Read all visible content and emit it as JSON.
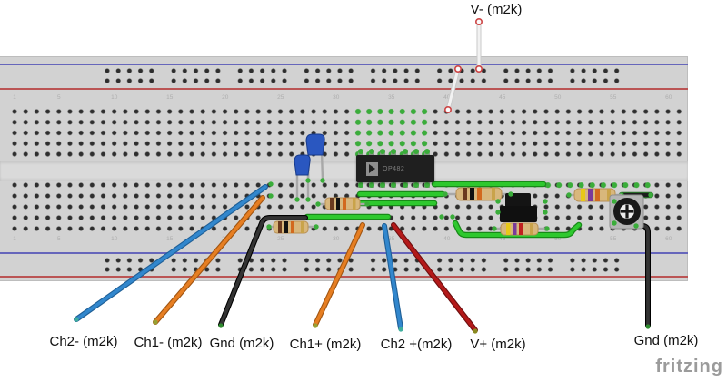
{
  "labels": {
    "v_minus": "V- (m2k)",
    "ch2_minus": "Ch2- (m2k)",
    "ch1_minus": "Ch1- (m2k)",
    "gnd_left": "Gnd (m2k)",
    "ch1_plus": "Ch1+ (m2k)",
    "ch2_plus": "Ch2 +(m2k)",
    "v_plus": "V+ (m2k)",
    "gnd_right": "Gnd (m2k)"
  },
  "ic": {
    "label": "OP482"
  },
  "watermark": "fritzing",
  "board": {
    "column_numbers": [
      "1",
      "5",
      "10",
      "15",
      "20",
      "25",
      "30",
      "35",
      "40",
      "45",
      "50",
      "55",
      "60"
    ]
  },
  "components": {
    "capacitors": [
      "blue ceramic capacitor",
      "blue ceramic capacitor"
    ],
    "resistors": [
      {
        "id": "r1",
        "bands": "brown-black-orange-gold"
      },
      {
        "id": "r2",
        "bands": "brown-black-orange-gold"
      },
      {
        "id": "r3",
        "bands": "brown-black-orange-gold"
      },
      {
        "id": "r4",
        "bands": "yellow-violet-red-gold"
      },
      {
        "id": "r5",
        "bands": "yellow-violet-orange-gold"
      }
    ],
    "trimmer_pot": "trim potentiometer",
    "jumper_block": "black jumper shunt",
    "white_jumpers": "V- supply wire with ring terminals"
  },
  "colors": {
    "board": "#d2d2d2",
    "rail_blue": "#6666bb",
    "rail_red": "#bb5555",
    "wire_green": "#2ec82e",
    "wire_blue": "#3287cd",
    "wire_orange": "#e67e22",
    "wire_black": "#2d2d2d",
    "wire_red": "#b31919",
    "wire_white": "#f2f2f2",
    "connection_green": "#3aad3a",
    "label_text": "#111111",
    "watermark": "#9b9b9b"
  }
}
